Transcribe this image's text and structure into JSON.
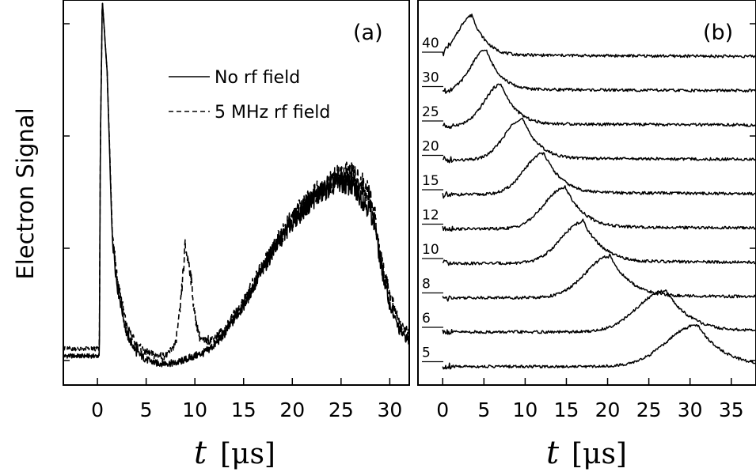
{
  "chart_data": [
    {
      "panel": "(a)",
      "type": "line",
      "ylabel": "Electron Signal",
      "xlabel_symbol": "t",
      "xlabel_unit": "[μs]",
      "xlim": [
        -3.5,
        32
      ],
      "ylim": [
        -0.6,
        10
      ],
      "xticks": [
        0,
        5,
        10,
        15,
        20,
        25,
        30
      ],
      "xtick_labels": [
        "0",
        "5",
        "10",
        "15",
        "20",
        "25",
        "30"
      ],
      "series": [
        {
          "name": "No rf field",
          "style": "solid",
          "x": [
            -3.5,
            0.2,
            0.3,
            0.5,
            1,
            1.5,
            2,
            3,
            4,
            5,
            6,
            7,
            8,
            9,
            10,
            11,
            12,
            13,
            14,
            15,
            16,
            17,
            18,
            19,
            20,
            21,
            22,
            23,
            24,
            25,
            26,
            27,
            28,
            28.5,
            29,
            30,
            31,
            32
          ],
          "y": [
            0.2,
            0.2,
            6.0,
            10,
            8.0,
            3.6,
            2.2,
            0.8,
            0.3,
            0.1,
            0.0,
            0.0,
            0.0,
            0.1,
            0.2,
            0.3,
            0.5,
            0.8,
            1.2,
            1.6,
            2.1,
            2.6,
            3.1,
            3.5,
            3.9,
            4.2,
            4.5,
            4.7,
            4.9,
            5.0,
            4.9,
            4.6,
            4.2,
            3.8,
            2.8,
            1.6,
            0.9,
            0.6
          ]
        },
        {
          "name": "5 MHz rf field",
          "style": "dashed",
          "x": [
            -3.5,
            0.2,
            0.3,
            0.5,
            1,
            1.5,
            2,
            3,
            4,
            5,
            6,
            7,
            8,
            8.5,
            9,
            9.5,
            10,
            10.5,
            11,
            12,
            13,
            14,
            15,
            16,
            17,
            18,
            19,
            20,
            21,
            22,
            23,
            24,
            25,
            26,
            27,
            28,
            28.5,
            29,
            30,
            31,
            32
          ],
          "y": [
            0.4,
            0.4,
            6.0,
            10,
            8.0,
            3.8,
            2.4,
            1.0,
            0.5,
            0.3,
            0.2,
            0.2,
            0.5,
            1.5,
            3.2,
            2.6,
            1.3,
            0.7,
            0.6,
            0.7,
            0.9,
            1.3,
            1.7,
            2.2,
            2.7,
            3.2,
            3.6,
            4.0,
            4.3,
            4.6,
            4.8,
            5.0,
            5.2,
            5.2,
            5.0,
            4.6,
            4.0,
            3.0,
            1.9,
            1.1,
            0.8
          ]
        }
      ],
      "legend": [
        "No rf field",
        "5 MHz rf field"
      ],
      "legend_position": "upper-center"
    },
    {
      "panel": "(b)",
      "type": "line",
      "xlabel_symbol": "t",
      "xlabel_unit": "[μs]",
      "xlim": [
        -3,
        38
      ],
      "xticks": [
        0,
        5,
        10,
        15,
        20,
        25,
        30,
        35
      ],
      "xtick_labels": [
        "0",
        "5",
        "10",
        "15",
        "20",
        "25",
        "30",
        "35"
      ],
      "offset_labels": [
        "40",
        "30",
        "25",
        "20",
        "15",
        "12",
        "10",
        "8",
        "6",
        "5"
      ],
      "series": [
        {
          "label": "40",
          "peak_x": 3.5
        },
        {
          "label": "30",
          "peak_x": 5.2
        },
        {
          "label": "25",
          "peak_x": 7.0
        },
        {
          "label": "20",
          "peak_x": 9.6
        },
        {
          "label": "15",
          "peak_x": 12.2
        },
        {
          "label": "12",
          "peak_x": 14.8
        },
        {
          "label": "10",
          "peak_x": 17.0
        },
        {
          "label": "8",
          "peak_x": 20.2
        },
        {
          "label": "6",
          "peak_x": 27.0
        },
        {
          "label": "5",
          "peak_x": 30.8
        }
      ]
    }
  ],
  "panels": {
    "a": {
      "label": "(a)",
      "ylabel": "Electron Signal",
      "legend": [
        {
          "text": "No rf field",
          "style": "solid"
        },
        {
          "text": "5 MHz rf field",
          "style": "dashed"
        }
      ]
    },
    "b": {
      "label": "(b)"
    }
  }
}
